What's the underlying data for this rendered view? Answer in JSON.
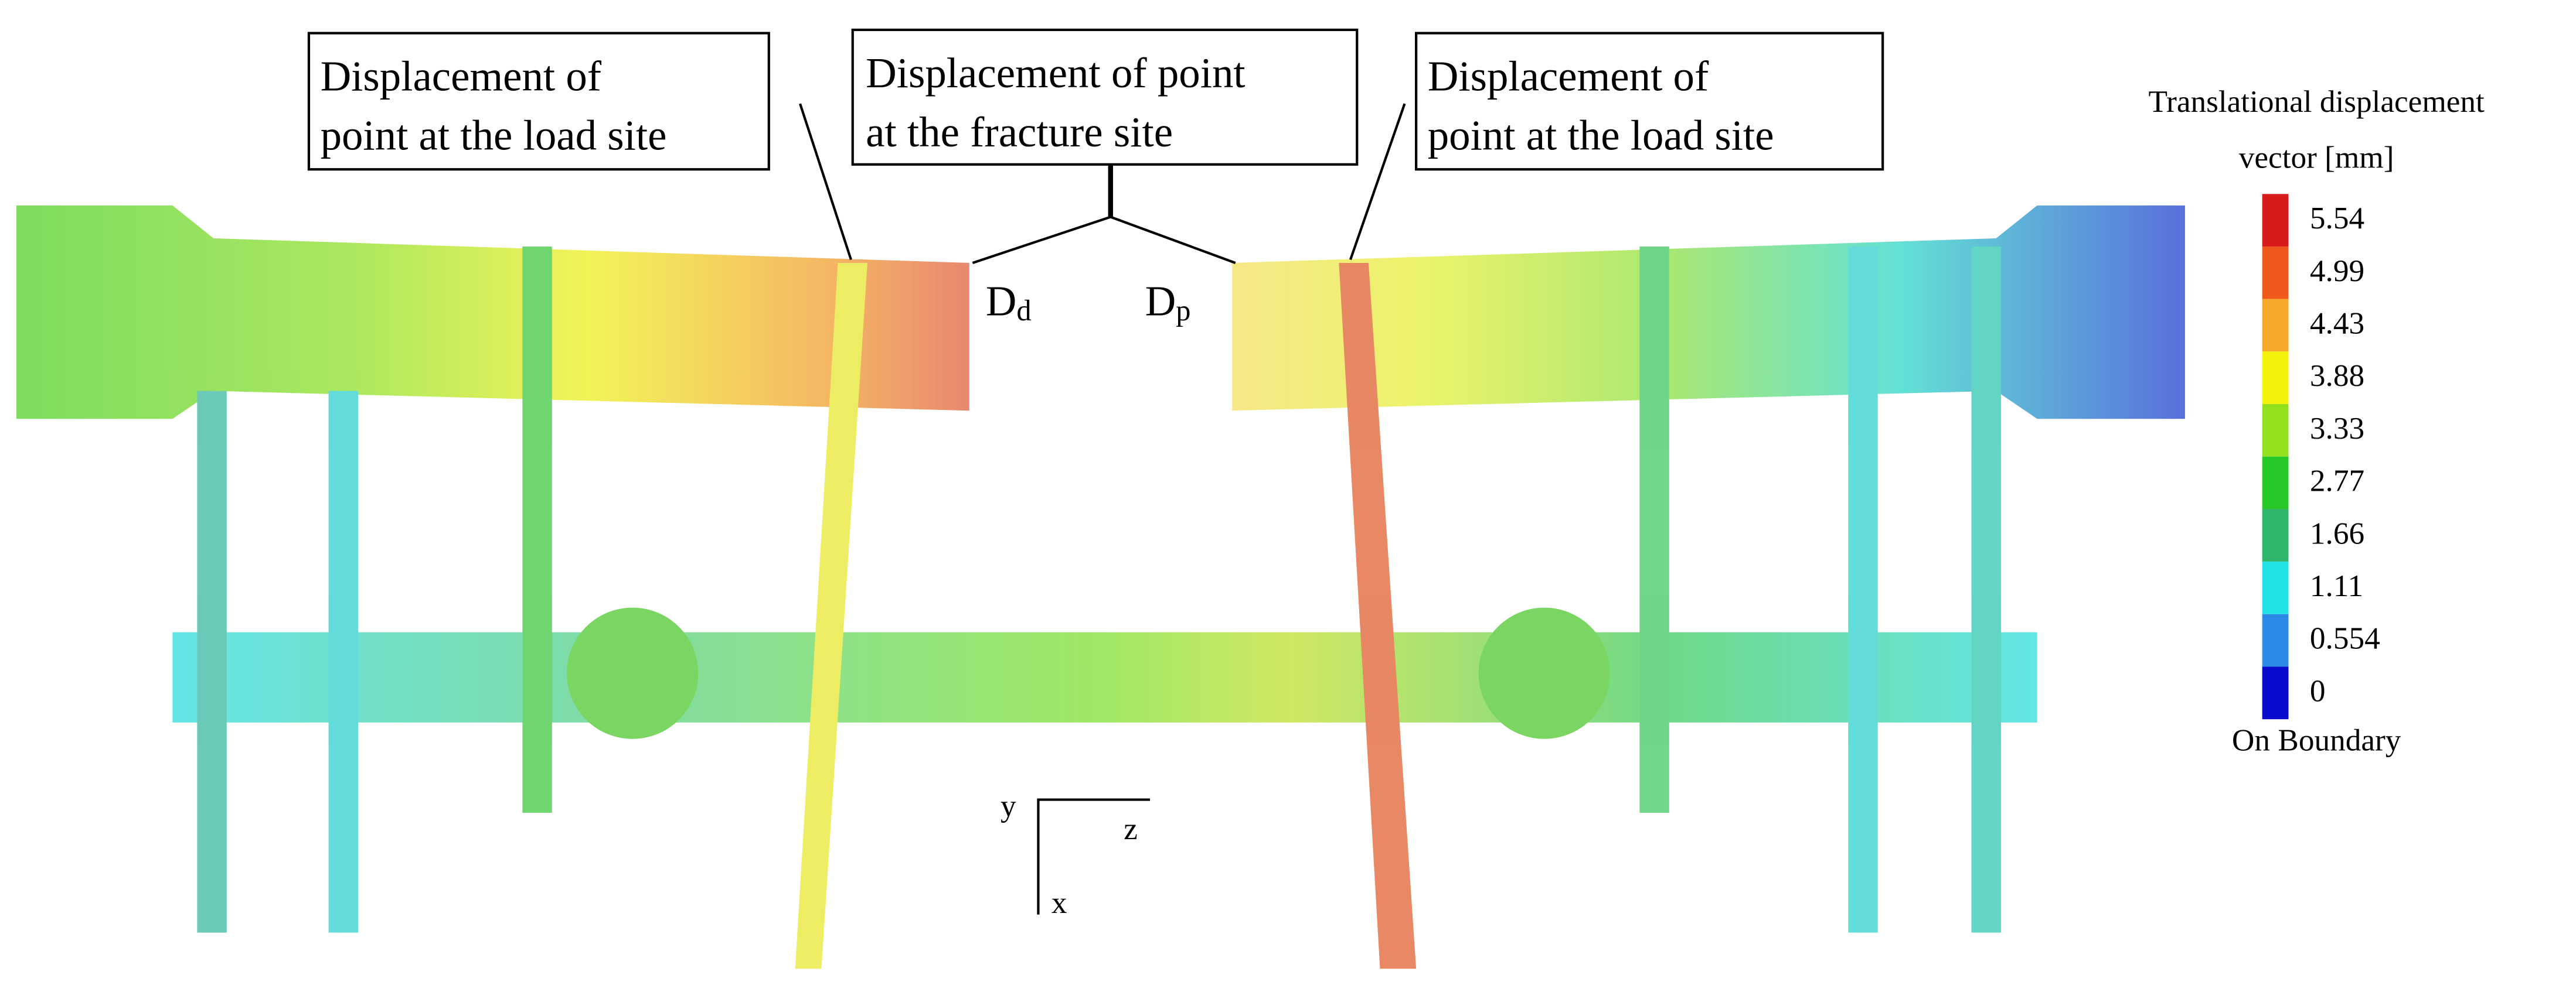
{
  "annotations": [
    {
      "lines": [
        "Displacement of",
        "point at the load site"
      ]
    },
    {
      "lines": [
        "Displacement of point",
        "at the fracture site"
      ]
    },
    {
      "lines": [
        "Displacement of",
        "point at the load site"
      ]
    }
  ],
  "points": [
    {
      "letter": "D",
      "subscript": "d"
    },
    {
      "letter": "D",
      "subscript": "p"
    }
  ],
  "legend": {
    "title_lines": [
      "Translational displacement",
      "vector [mm]"
    ],
    "entries": [
      {
        "label": "5.54",
        "color": "#d71a1a"
      },
      {
        "label": "4.99",
        "color": "#ef5a1c"
      },
      {
        "label": "4.43",
        "color": "#f5a82a"
      },
      {
        "label": "3.88",
        "color": "#f2f20c"
      },
      {
        "label": "3.33",
        "color": "#92e01e"
      },
      {
        "label": "2.77",
        "color": "#28c828"
      },
      {
        "label": "1.66",
        "color": "#2fb56c"
      },
      {
        "label": "1.11",
        "color": "#20e2e2"
      },
      {
        "label": "0.554",
        "color": "#2b8ae6"
      },
      {
        "label": "0",
        "color": "#0a0acc"
      }
    ],
    "footer": "On Boundary"
  },
  "axes": {
    "y": "y",
    "z": "z",
    "x": "x"
  }
}
